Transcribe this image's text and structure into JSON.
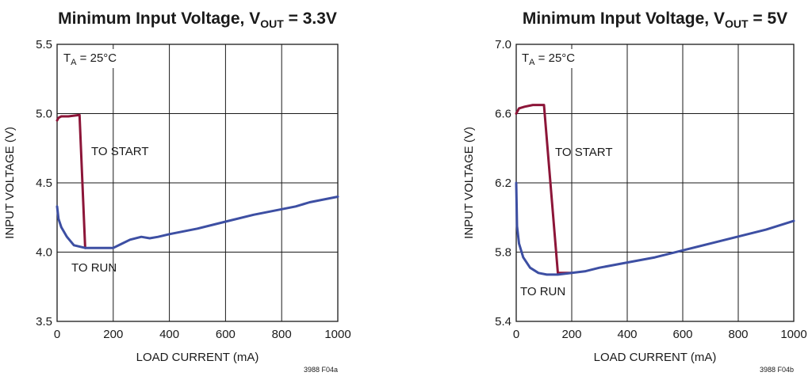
{
  "chart_data": [
    {
      "type": "line",
      "title_main": "Minimum Input Voltage, V",
      "title_sub": "OUT",
      "title_tail": " = 3.3V",
      "xlabel": "LOAD CURRENT (mA)",
      "ylabel": "INPUT VOLTAGE (V)",
      "xlim": [
        0,
        1000
      ],
      "ylim": [
        3.5,
        5.5
      ],
      "x_ticks": [
        "0",
        "200",
        "400",
        "600",
        "800",
        "1000"
      ],
      "y_ticks": [
        "3.5",
        "4.0",
        "4.5",
        "5.0",
        "5.5"
      ],
      "grid": true,
      "annotation": {
        "main": "T",
        "sub": "A",
        "tail": " = 25°C"
      },
      "series": [
        {
          "name": "TO START",
          "color": "#8c1538",
          "x": [
            0,
            5,
            15,
            40,
            80,
            100
          ],
          "y": [
            4.95,
            4.97,
            4.98,
            4.98,
            4.99,
            4.03
          ]
        },
        {
          "name": "TO RUN",
          "color": "#3d4fa3",
          "x": [
            0,
            5,
            15,
            35,
            60,
            100,
            150,
            200,
            230,
            260,
            300,
            330,
            360,
            400,
            500,
            600,
            700,
            800,
            850,
            900,
            1000
          ],
          "y": [
            4.33,
            4.24,
            4.18,
            4.11,
            4.05,
            4.03,
            4.03,
            4.03,
            4.06,
            4.09,
            4.11,
            4.1,
            4.11,
            4.13,
            4.17,
            4.22,
            4.27,
            4.31,
            4.33,
            4.36,
            4.4
          ]
        }
      ],
      "series_labels": [
        "TO START",
        "TO RUN"
      ],
      "figure_code": "3988 F04a"
    },
    {
      "type": "line",
      "title_main": "Minimum Input Voltage, V",
      "title_sub": "OUT",
      "title_tail": " = 5V",
      "xlabel": "LOAD CURRENT (mA)",
      "ylabel": "INPUT VOLTAGE (V)",
      "xlim": [
        0,
        1000
      ],
      "ylim": [
        5.4,
        7.0
      ],
      "x_ticks": [
        "0",
        "200",
        "400",
        "600",
        "800",
        "1000"
      ],
      "y_ticks": [
        "5.4",
        "5.8",
        "6.2",
        "6.6",
        "7.0"
      ],
      "grid": true,
      "annotation": {
        "main": "T",
        "sub": "A",
        "tail": " = 25°C"
      },
      "series": [
        {
          "name": "TO START",
          "color": "#8c1538",
          "x": [
            0,
            10,
            30,
            60,
            100,
            150,
            200
          ],
          "y": [
            6.6,
            6.63,
            6.64,
            6.65,
            6.65,
            5.68,
            5.68
          ]
        },
        {
          "name": "TO RUN",
          "color": "#3d4fa3",
          "x": [
            0,
            3,
            10,
            25,
            50,
            80,
            110,
            150,
            200,
            250,
            300,
            400,
            500,
            600,
            700,
            800,
            900,
            1000
          ],
          "y": [
            6.2,
            5.95,
            5.85,
            5.77,
            5.71,
            5.68,
            5.67,
            5.67,
            5.68,
            5.69,
            5.71,
            5.74,
            5.77,
            5.81,
            5.85,
            5.89,
            5.93,
            5.98
          ]
        }
      ],
      "series_labels": [
        "TO START",
        "TO RUN"
      ],
      "figure_code": "3988 F04b"
    }
  ]
}
